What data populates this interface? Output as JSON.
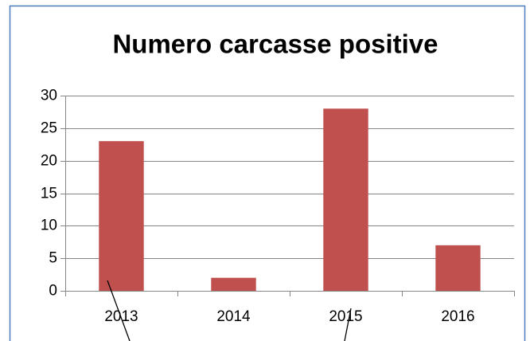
{
  "chart_data": {
    "type": "bar",
    "title": "Numero carcasse positive",
    "categories": [
      "2013",
      "2014",
      "2015",
      "2016"
    ],
    "values": [
      23,
      2,
      28,
      7
    ],
    "color": "#c0504d",
    "ylim": [
      0,
      30
    ],
    "yticks": [
      0,
      5,
      10,
      15,
      20,
      25,
      30
    ],
    "grid": true
  }
}
